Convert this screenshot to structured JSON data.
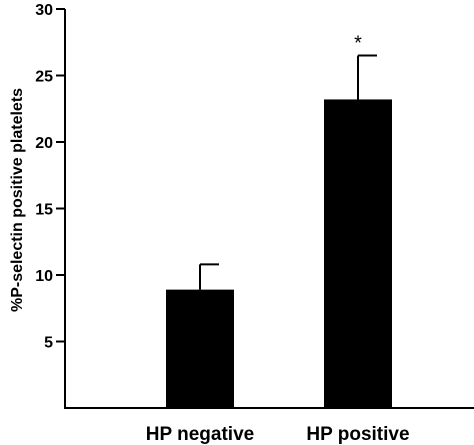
{
  "chart_data": {
    "type": "bar",
    "categories": [
      "HP negative",
      "HP positive"
    ],
    "series": [
      {
        "values": [
          8.9,
          23.2
        ],
        "error_upper": [
          10.8,
          26.5
        ]
      }
    ],
    "annotations": [
      {
        "category": "HP positive",
        "text": "*"
      }
    ],
    "xlabel": "",
    "ylabel": "%P-selectin positive platelets",
    "ylim": [
      0,
      30
    ],
    "yticks": [
      5,
      10,
      15,
      20,
      25,
      30
    ],
    "ytick_labels": [
      "5",
      "10",
      "15",
      "20",
      "25",
      "30"
    ],
    "grid": false,
    "bar_color": "#000000"
  }
}
